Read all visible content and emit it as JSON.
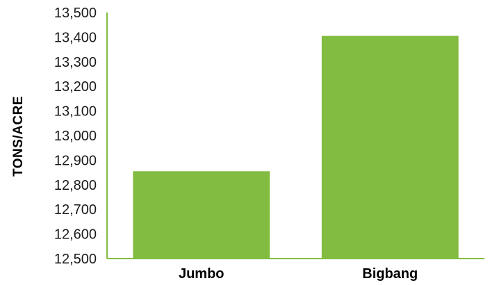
{
  "chart_data": {
    "type": "bar",
    "categories": [
      "Jumbo",
      "Bigbang"
    ],
    "values": [
      12855,
      13405
    ],
    "title": "",
    "xlabel": "",
    "ylabel": "TONS/ACRE",
    "ylim": [
      12500,
      13500
    ],
    "yticks": [
      "12,500",
      "12,600",
      "12,700",
      "12,800",
      "12,900",
      "13,000",
      "13,100",
      "13,200",
      "13,300",
      "13,400",
      "13,500"
    ],
    "grid": false,
    "legend": "none",
    "colors": {
      "bar": "#82bc41",
      "axis": "#82bc41"
    }
  }
}
